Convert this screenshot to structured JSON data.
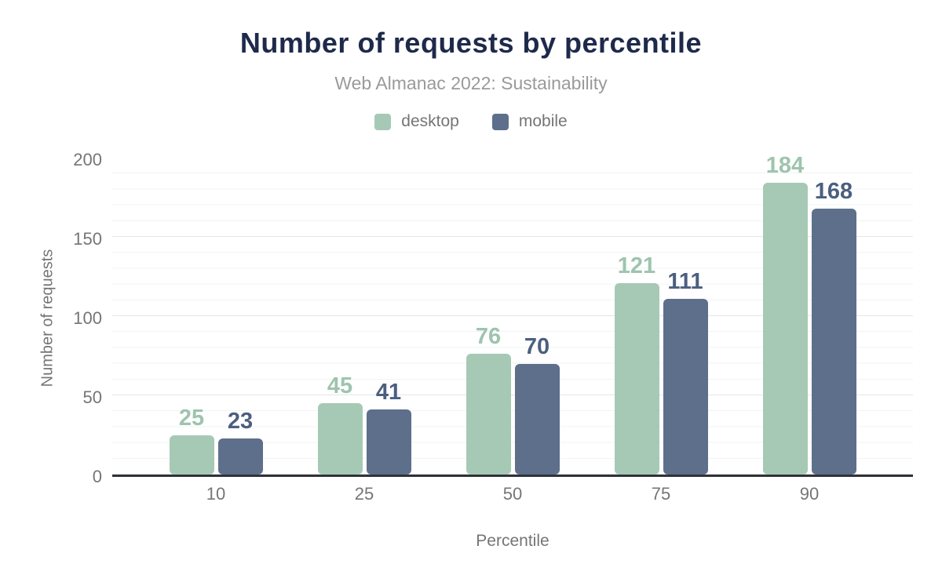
{
  "chart_data": {
    "type": "bar",
    "title": "Number of requests by percentile",
    "subtitle": "Web Almanac 2022: Sustainability",
    "categories": [
      "10",
      "25",
      "50",
      "75",
      "90"
    ],
    "series": [
      {
        "name": "desktop",
        "color": "#a6c9b6",
        "label_color": "#9ec4ae",
        "values": [
          25,
          45,
          76,
          121,
          184
        ]
      },
      {
        "name": "mobile",
        "color": "#5d6f8b",
        "label_color": "#4b5f80",
        "values": [
          23,
          41,
          70,
          111,
          168
        ]
      }
    ],
    "xlabel": "Percentile",
    "ylabel": "Number of requests",
    "yticks": [
      0,
      50,
      100,
      150,
      200
    ],
    "ylim": [
      0,
      200
    ],
    "grid": "horizontal, major every 50, minor every 10",
    "legend_position": "top-center",
    "colors": {
      "title": "#1e2a4a",
      "subtitle": "#9a9a9a",
      "axis_text": "#757575",
      "grid_major": "#e4e6e7",
      "grid_minor": "#f2f3f4",
      "baseline": "#2f3338"
    }
  }
}
